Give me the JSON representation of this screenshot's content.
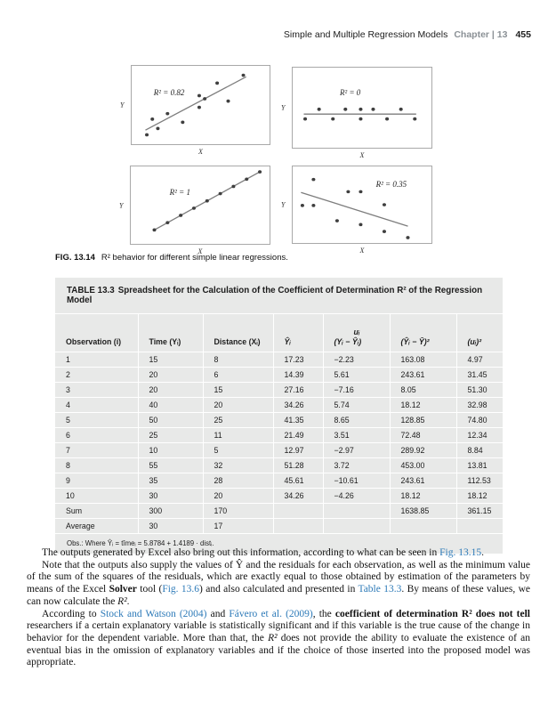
{
  "page": {
    "header": {
      "title": "Simple and Multiple Regression Models",
      "chapter": "Chapter | 13",
      "page_number": "455"
    }
  },
  "figure": {
    "caption_label": "FIG. 13.14",
    "caption_text": "R² behavior for different simple linear regressions.",
    "axis_x": "X",
    "axis_y": "Y"
  },
  "chart_data": [
    {
      "type": "scatter",
      "r2": 0.82,
      "r2_label": "R² = 0.82",
      "xlabel": "X",
      "ylabel": "Y",
      "points": [
        [
          11,
          88
        ],
        [
          19,
          80
        ],
        [
          15,
          68
        ],
        [
          26,
          61
        ],
        [
          37,
          72
        ],
        [
          49,
          53
        ],
        [
          49,
          38
        ],
        [
          53,
          42
        ],
        [
          62,
          22
        ],
        [
          70,
          45
        ],
        [
          81,
          12
        ]
      ],
      "trendline": [
        10,
        82,
        83,
        14
      ],
      "label_pos": [
        16,
        28
      ]
    },
    {
      "type": "scatter",
      "r2": 0,
      "r2_label": "R² = 0",
      "xlabel": "X",
      "ylabel": "Y",
      "points": [
        [
          19,
          52
        ],
        [
          38,
          52
        ],
        [
          49,
          52
        ],
        [
          58,
          52
        ],
        [
          78,
          52
        ],
        [
          9,
          64
        ],
        [
          29,
          64
        ],
        [
          49,
          64
        ],
        [
          68,
          64
        ],
        [
          88,
          64
        ]
      ],
      "trendline": [
        8,
        58,
        89,
        58
      ],
      "label_pos": [
        34,
        25
      ]
    },
    {
      "type": "scatter",
      "r2": 1,
      "r2_label": "R² = 1",
      "xlabel": "X",
      "ylabel": "Y",
      "points": [
        [
          17,
          82
        ],
        [
          26.5,
          72.6
        ],
        [
          36,
          63.2
        ],
        [
          45.5,
          53.9
        ],
        [
          55,
          44.5
        ],
        [
          64.5,
          35.1
        ],
        [
          74,
          25.8
        ],
        [
          83.5,
          16.4
        ],
        [
          93,
          7
        ]
      ],
      "trendline": [
        17,
        82,
        93,
        7
      ],
      "label_pos": [
        28,
        28
      ]
    },
    {
      "type": "scatter",
      "r2": 0.35,
      "r2_label": "R² = 0.35",
      "xlabel": "X",
      "ylabel": "Y",
      "points": [
        [
          15,
          17
        ],
        [
          40,
          33
        ],
        [
          49,
          33
        ],
        [
          7,
          51
        ],
        [
          15,
          51
        ],
        [
          66,
          50
        ],
        [
          32,
          71
        ],
        [
          49,
          76
        ],
        [
          66,
          85
        ],
        [
          83,
          93
        ]
      ],
      "trendline": [
        6,
        34,
        83,
        78
      ],
      "label_pos": [
        60,
        18
      ]
    }
  ],
  "table": {
    "title_label": "TABLE 13.3",
    "title_text": "Spreadsheet for the Calculation of the Coefficient of Determination R² of the Regression Model",
    "headers": [
      {
        "main": "Observation (i)"
      },
      {
        "main": "Time (Yᵢ)"
      },
      {
        "main": "Distance (Xᵢ)"
      },
      {
        "main": "Ŷᵢ"
      },
      {
        "top": "uᵢ",
        "main": "(Yᵢ − Ŷᵢ)"
      },
      {
        "main": "(Ŷᵢ − Ȳ)²"
      },
      {
        "main": "(uᵢ)²"
      }
    ],
    "rows": [
      [
        "1",
        "15",
        "8",
        "17.23",
        "−2.23",
        "163.08",
        "4.97"
      ],
      [
        "2",
        "20",
        "6",
        "14.39",
        "5.61",
        "243.61",
        "31.45"
      ],
      [
        "3",
        "20",
        "15",
        "27.16",
        "−7.16",
        "8.05",
        "51.30"
      ],
      [
        "4",
        "40",
        "20",
        "34.26",
        "5.74",
        "18.12",
        "32.98"
      ],
      [
        "5",
        "50",
        "25",
        "41.35",
        "8.65",
        "128.85",
        "74.80"
      ],
      [
        "6",
        "25",
        "11",
        "21.49",
        "3.51",
        "72.48",
        "12.34"
      ],
      [
        "7",
        "10",
        "5",
        "12.97",
        "−2.97",
        "289.92",
        "8.84"
      ],
      [
        "8",
        "55",
        "32",
        "51.28",
        "3.72",
        "453.00",
        "13.81"
      ],
      [
        "9",
        "35",
        "28",
        "45.61",
        "−10.61",
        "243.61",
        "112.53"
      ],
      [
        "10",
        "30",
        "20",
        "34.26",
        "−4.26",
        "18.12",
        "18.12"
      ],
      [
        "Sum",
        "300",
        "170",
        "",
        "",
        "1638.85",
        "361.15"
      ],
      [
        "Average",
        "30",
        "17",
        "",
        "",
        "",
        ""
      ]
    ],
    "note": "Obs.: Where Ŷᵢ = tîmeᵢ = 5.8784 + 1.4189 · distᵢ."
  },
  "body": {
    "paragraphs": [
      [
        {
          "t": "The outputs generated by Excel also bring out this information, according to what can be seen in ",
          "s": "p"
        },
        {
          "t": "Fig. 13.15",
          "s": "l"
        },
        {
          "t": ".",
          "s": "p"
        }
      ],
      [
        {
          "t": "Note that the outputs also supply the values of Ŷ and the residuals for each observation, as well as the minimum value of the sum of the squares of the residuals, which are exactly equal to those obtained by estimation of the parameters by means of the Excel ",
          "s": "p"
        },
        {
          "t": "Solver",
          "s": "b"
        },
        {
          "t": " tool (",
          "s": "p"
        },
        {
          "t": "Fig. 13.6",
          "s": "l"
        },
        {
          "t": ") and also calculated and presented in ",
          "s": "p"
        },
        {
          "t": "Table 13.3",
          "s": "l"
        },
        {
          "t": ". By means of these values, we can now calculate the ",
          "s": "p"
        },
        {
          "t": "R²",
          "s": "i"
        },
        {
          "t": ".",
          "s": "p"
        }
      ],
      [
        {
          "t": "According to ",
          "s": "p"
        },
        {
          "t": "Stock and Watson (2004)",
          "s": "l"
        },
        {
          "t": " and ",
          "s": "p"
        },
        {
          "t": "Fávero et al. (2009)",
          "s": "l"
        },
        {
          "t": ", the ",
          "s": "p"
        },
        {
          "t": "coefficient of determination R² does not tell",
          "s": "b"
        },
        {
          "t": " researchers if a certain explanatory variable is statistically significant and if this variable is the true cause of the change in behavior for the dependent variable. More than that, the ",
          "s": "p"
        },
        {
          "t": "R²",
          "s": "i"
        },
        {
          "t": " does not provide the ability to evaluate the existence of an eventual bias in the omission of explanatory variables and if the choice of those inserted into the proposed model was appropriate.",
          "s": "p"
        }
      ]
    ]
  },
  "colors": {
    "link_blue": "#2d7ab8",
    "table_bg": "#e8e9e8",
    "chapter_gray": "#8b9196"
  }
}
